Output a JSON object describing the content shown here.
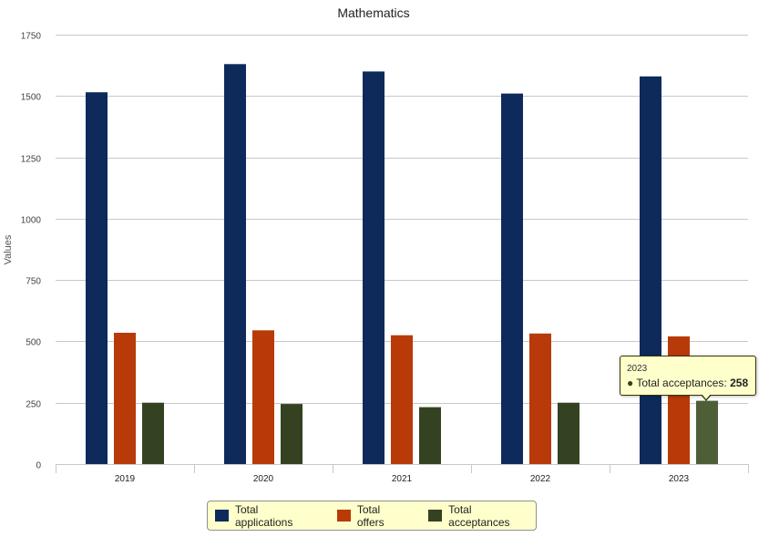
{
  "chart_data": {
    "type": "bar",
    "title": "Mathematics",
    "xlabel": "",
    "ylabel": "Values",
    "ylim": [
      0,
      1750
    ],
    "yticks": [
      0,
      250,
      500,
      750,
      1000,
      1250,
      1500,
      1750
    ],
    "categories": [
      "2019",
      "2020",
      "2021",
      "2022",
      "2023"
    ],
    "series": [
      {
        "name": "Total applications",
        "color": "#0d2a5a",
        "values": [
          1515,
          1630,
          1600,
          1510,
          1580
        ]
      },
      {
        "name": "Total offers",
        "color": "#b83a08",
        "values": [
          535,
          545,
          525,
          532,
          520
        ]
      },
      {
        "name": "Total acceptances",
        "color": "#344221",
        "values": [
          250,
          245,
          232,
          250,
          258
        ]
      }
    ],
    "grid": true,
    "legend_position": "bottom"
  },
  "tooltip": {
    "category": "2023",
    "bullet": "●",
    "series_name": "Total acceptances",
    "value": "258"
  }
}
